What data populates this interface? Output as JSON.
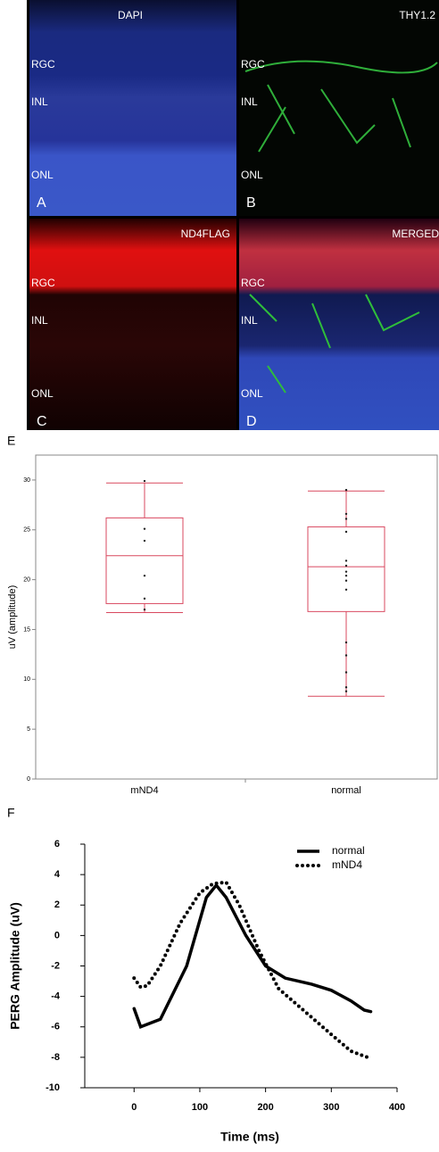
{
  "image_panels": [
    {
      "stain": "DAPI",
      "layers": [
        "RGC",
        "INL",
        "ONL"
      ],
      "letter": "A"
    },
    {
      "stain": "THY1.2",
      "layers": [
        "RGC",
        "INL",
        "ONL"
      ],
      "letter": "B"
    },
    {
      "stain": "ND4FLAG",
      "layers": [
        "RGC",
        "INL",
        "ONL"
      ],
      "letter": "C"
    },
    {
      "stain": "MERGED",
      "layers": [
        "RGC",
        "INL",
        "ONL"
      ],
      "letter": "D"
    }
  ],
  "chart_data": [
    {
      "type": "box",
      "panel": "E",
      "ylabel": "uV (amplitude)",
      "categories": [
        "mND4",
        "normal"
      ],
      "color": "#d9485f",
      "ylim": [
        0,
        32.5
      ],
      "yticks": [
        0,
        5,
        10,
        15,
        20,
        25,
        30
      ],
      "boxes": [
        {
          "min": 16.7,
          "q1": 17.6,
          "median": 22.4,
          "q3": 26.2,
          "max": 29.7,
          "points": [
            29.9,
            25.1,
            23.9,
            20.4,
            18.1,
            17.0
          ]
        },
        {
          "min": 8.3,
          "q1": 16.8,
          "median": 21.3,
          "q3": 25.3,
          "max": 28.9,
          "points": [
            29.0,
            26.6,
            26.1,
            24.8,
            21.9,
            21.4,
            20.8,
            20.4,
            19.9,
            19.0,
            13.7,
            12.4,
            10.7,
            9.2,
            8.8
          ]
        }
      ]
    },
    {
      "type": "line",
      "panel": "F",
      "xlabel": "Time (ms)",
      "ylabel": "PERG Amplitude (uV)",
      "xlim": [
        -75,
        400
      ],
      "xticks": [
        0,
        100,
        200,
        300,
        400
      ],
      "ylim": [
        -10,
        6
      ],
      "yticks": [
        -10,
        -8,
        -6,
        -4,
        -2,
        0,
        2,
        4,
        6
      ],
      "series": [
        {
          "name": "normal",
          "color": "#000000",
          "style": "solid",
          "x": [
            0,
            10,
            40,
            80,
            110,
            125,
            140,
            170,
            200,
            230,
            270,
            300,
            330,
            350,
            360
          ],
          "y": [
            -4.8,
            -6,
            -5.5,
            -2,
            2.5,
            3.3,
            2.5,
            0,
            -2,
            -2.8,
            -3.2,
            -3.6,
            -4.3,
            -4.9,
            -5
          ]
        },
        {
          "name": "mND4",
          "color": "#000000",
          "style": "dotted",
          "x": [
            0,
            10,
            20,
            40,
            70,
            100,
            120,
            140,
            160,
            190,
            220,
            260,
            300,
            330,
            355
          ],
          "y": [
            -2.8,
            -3.4,
            -3.3,
            -2,
            0.8,
            2.8,
            3.4,
            3.5,
            2,
            -1,
            -3.5,
            -5,
            -6.5,
            -7.6,
            -8
          ]
        }
      ]
    }
  ]
}
